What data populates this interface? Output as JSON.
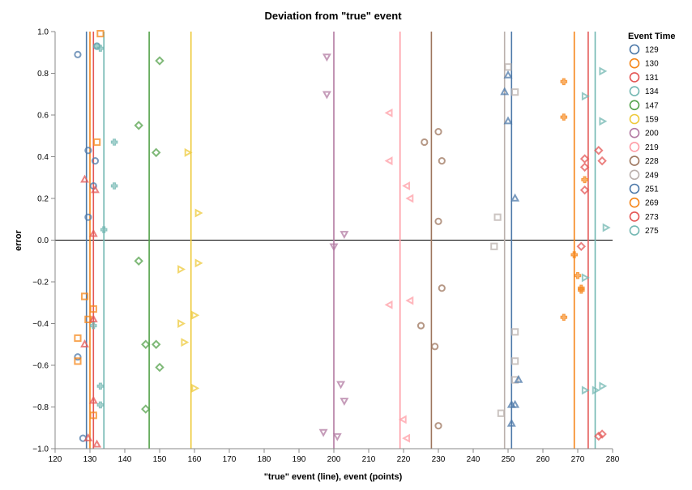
{
  "chart_data": {
    "type": "scatter",
    "title": "Deviation from \"true\" event",
    "xlabel": "\"true\" event (line), event (points)",
    "ylabel": "error",
    "xlim": [
      120,
      280
    ],
    "ylim": [
      -1.0,
      1.0
    ],
    "x_ticks": [
      "120",
      "130",
      "140",
      "150",
      "160",
      "170",
      "180",
      "190",
      "200",
      "210",
      "220",
      "230",
      "240",
      "250",
      "260",
      "270",
      "280"
    ],
    "y_ticks": [
      "−1.0",
      "−0.8",
      "−0.6",
      "−0.4",
      "−0.2",
      "0.0",
      "0.2",
      "0.4",
      "0.6",
      "0.8",
      "1.0"
    ],
    "zero_line": true,
    "legend": {
      "title": "Event Time",
      "position": "right"
    },
    "series": [
      {
        "name": "129",
        "color": "#4c78a8",
        "shape": "circle",
        "true_event": 129,
        "points": [
          [
            126.5,
            0.89
          ],
          [
            132,
            0.93
          ],
          [
            129.5,
            0.43
          ],
          [
            131.5,
            0.38
          ],
          [
            131,
            0.26
          ],
          [
            129.5,
            0.11
          ],
          [
            126.5,
            -0.56
          ],
          [
            128,
            -0.95
          ]
        ]
      },
      {
        "name": "130",
        "color": "#f58518",
        "shape": "square",
        "true_event": 130,
        "points": [
          [
            133,
            0.99
          ],
          [
            132,
            0.47
          ],
          [
            128.5,
            -0.27
          ],
          [
            129.5,
            -0.38
          ],
          [
            131,
            -0.33
          ],
          [
            126.5,
            -0.47
          ],
          [
            126.5,
            -0.58
          ],
          [
            131,
            -0.84
          ]
        ]
      },
      {
        "name": "131",
        "color": "#e45756",
        "shape": "triangle-up",
        "true_event": 131,
        "points": [
          [
            128.5,
            0.29
          ],
          [
            131.5,
            0.24
          ],
          [
            131,
            0.03
          ],
          [
            131,
            -0.38
          ],
          [
            128.5,
            -0.5
          ],
          [
            131,
            -0.77
          ],
          [
            129.5,
            -0.95
          ],
          [
            132,
            -0.98
          ]
        ]
      },
      {
        "name": "134",
        "color": "#72b7b2",
        "shape": "cross",
        "true_event": 134,
        "points": [
          [
            132,
            0.93
          ],
          [
            133,
            0.92
          ],
          [
            137,
            0.47
          ],
          [
            137,
            0.26
          ],
          [
            134,
            0.05
          ],
          [
            131,
            -0.41
          ],
          [
            133,
            -0.7
          ],
          [
            133,
            -0.79
          ]
        ]
      },
      {
        "name": "147",
        "color": "#54a24b",
        "shape": "diamond",
        "true_event": 147,
        "points": [
          [
            150,
            0.86
          ],
          [
            144,
            0.55
          ],
          [
            149,
            0.42
          ],
          [
            144,
            -0.1
          ],
          [
            146,
            -0.5
          ],
          [
            149,
            -0.5
          ],
          [
            150,
            -0.61
          ],
          [
            146,
            -0.81
          ]
        ]
      },
      {
        "name": "159",
        "color": "#eeca3b",
        "shape": "triangle-right",
        "true_event": 159,
        "points": [
          [
            158,
            0.42
          ],
          [
            161,
            0.13
          ],
          [
            156,
            -0.14
          ],
          [
            161,
            -0.11
          ],
          [
            160,
            -0.36
          ],
          [
            156,
            -0.4
          ],
          [
            157,
            -0.49
          ],
          [
            160,
            -0.71
          ]
        ]
      },
      {
        "name": "200",
        "color": "#b279a2",
        "shape": "triangle-down",
        "true_event": 200,
        "points": [
          [
            198,
            0.88
          ],
          [
            198,
            0.7
          ],
          [
            203,
            0.03
          ],
          [
            200,
            -0.03
          ],
          [
            202,
            -0.69
          ],
          [
            203,
            -0.77
          ],
          [
            197,
            -0.92
          ],
          [
            201,
            -0.94
          ]
        ]
      },
      {
        "name": "219",
        "color": "#ff9da6",
        "shape": "triangle-left",
        "true_event": 219,
        "points": [
          [
            216,
            0.61
          ],
          [
            216,
            0.38
          ],
          [
            221,
            0.26
          ],
          [
            222,
            0.2
          ],
          [
            216,
            -0.31
          ],
          [
            222,
            -0.29
          ],
          [
            220,
            -0.86
          ],
          [
            221,
            -0.95
          ]
        ]
      },
      {
        "name": "228",
        "color": "#9d755d",
        "shape": "circle",
        "true_event": 228,
        "points": [
          [
            230,
            0.52
          ],
          [
            226,
            0.47
          ],
          [
            231,
            0.38
          ],
          [
            230,
            0.09
          ],
          [
            231,
            -0.23
          ],
          [
            225,
            -0.41
          ],
          [
            229,
            -0.51
          ],
          [
            230,
            -0.89
          ]
        ]
      },
      {
        "name": "249",
        "color": "#bab0ac",
        "shape": "square",
        "true_event": 249,
        "points": [
          [
            250,
            0.83
          ],
          [
            252,
            0.71
          ],
          [
            247,
            0.11
          ],
          [
            246,
            -0.03
          ],
          [
            252,
            -0.44
          ],
          [
            252,
            -0.58
          ],
          [
            252,
            -0.67
          ],
          [
            248,
            -0.83
          ]
        ]
      },
      {
        "name": "251",
        "color": "#4c78a8",
        "shape": "triangle-up",
        "true_event": 251,
        "points": [
          [
            250,
            0.79
          ],
          [
            249,
            0.71
          ],
          [
            250,
            0.57
          ],
          [
            252,
            0.2
          ],
          [
            253,
            -0.67
          ],
          [
            251,
            -0.79
          ],
          [
            252,
            -0.79
          ],
          [
            251,
            -0.88
          ]
        ]
      },
      {
        "name": "269",
        "color": "#f58518",
        "shape": "cross",
        "true_event": 269,
        "points": [
          [
            266,
            0.76
          ],
          [
            266,
            0.59
          ],
          [
            272,
            0.29
          ],
          [
            269,
            -0.07
          ],
          [
            270,
            -0.17
          ],
          [
            271,
            -0.23
          ],
          [
            271,
            -0.24
          ],
          [
            266,
            -0.37
          ]
        ]
      },
      {
        "name": "273",
        "color": "#e45756",
        "shape": "diamond",
        "true_event": 273,
        "points": [
          [
            276,
            0.43
          ],
          [
            272,
            0.39
          ],
          [
            277,
            0.38
          ],
          [
            272,
            0.35
          ],
          [
            272,
            0.24
          ],
          [
            271,
            -0.03
          ],
          [
            276,
            -0.94
          ],
          [
            277,
            -0.93
          ]
        ]
      },
      {
        "name": "275",
        "color": "#72b7b2",
        "shape": "triangle-right",
        "true_event": 275,
        "points": [
          [
            277,
            0.81
          ],
          [
            272,
            0.69
          ],
          [
            277,
            0.57
          ],
          [
            278,
            0.06
          ],
          [
            272,
            -0.18
          ],
          [
            277,
            -0.7
          ],
          [
            275,
            -0.72
          ],
          [
            272,
            -0.72
          ]
        ]
      }
    ]
  }
}
